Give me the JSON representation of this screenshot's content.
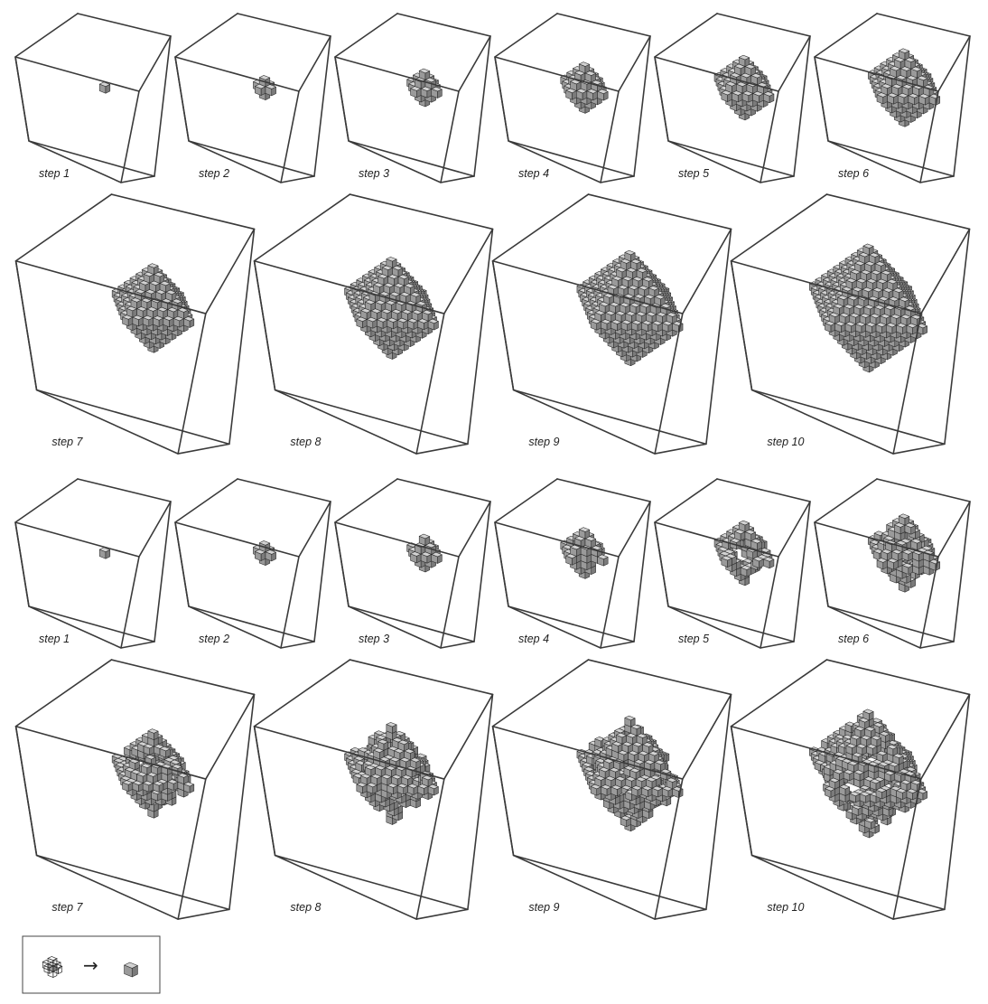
{
  "colors": {
    "frame": "#3a3a3a",
    "cube_top": "#d2d2d2",
    "cube_left": "#9a9a9a",
    "cube_right": "#7b7b7b",
    "cube_edge": "#2a2a2a",
    "label": "#222222"
  },
  "sequences": [
    {
      "name": "",
      "panels": [
        {
          "step": 1,
          "label": "step 1",
          "radius": 0,
          "shape": "diamond"
        },
        {
          "step": 2,
          "label": "step 2",
          "radius": 1,
          "shape": "diamond"
        },
        {
          "step": 3,
          "label": "step 3",
          "radius": 2,
          "shape": "diamond"
        },
        {
          "step": 4,
          "label": "step 4",
          "radius": 3,
          "shape": "diamond"
        },
        {
          "step": 5,
          "label": "step 5",
          "radius": 4,
          "shape": "diamond"
        },
        {
          "step": 6,
          "label": "step 6",
          "radius": 5,
          "shape": "diamond"
        },
        {
          "step": 7,
          "label": "step 7",
          "radius": 6,
          "shape": "diamond"
        },
        {
          "step": 8,
          "label": "step 8",
          "radius": 7,
          "shape": "diamond"
        },
        {
          "step": 9,
          "label": "step 9",
          "radius": 8,
          "shape": "diamond"
        },
        {
          "step": 10,
          "label": "step 10",
          "radius": 9,
          "shape": "diamond"
        }
      ]
    },
    {
      "name": "",
      "panels": [
        {
          "step": 1,
          "label": "step 1",
          "radius": 0,
          "shape": "irregular"
        },
        {
          "step": 2,
          "label": "step 2",
          "radius": 1,
          "shape": "irregular"
        },
        {
          "step": 3,
          "label": "step 3",
          "radius": 2,
          "shape": "irregular"
        },
        {
          "step": 4,
          "label": "step 4",
          "radius": 3,
          "shape": "irregular"
        },
        {
          "step": 5,
          "label": "step 5",
          "radius": 4,
          "shape": "irregular"
        },
        {
          "step": 6,
          "label": "step 6",
          "radius": 5,
          "shape": "irregular"
        },
        {
          "step": 7,
          "label": "step 7",
          "radius": 6,
          "shape": "irregular"
        },
        {
          "step": 8,
          "label": "step 8",
          "radius": 7,
          "shape": "irregular"
        },
        {
          "step": 9,
          "label": "step 9",
          "radius": 8,
          "shape": "irregular"
        },
        {
          "step": 10,
          "label": "step 10",
          "radius": 9,
          "shape": "irregular"
        }
      ]
    }
  ],
  "legend": {
    "arrow": "→",
    "rule": "neighborhood-to-cell"
  }
}
